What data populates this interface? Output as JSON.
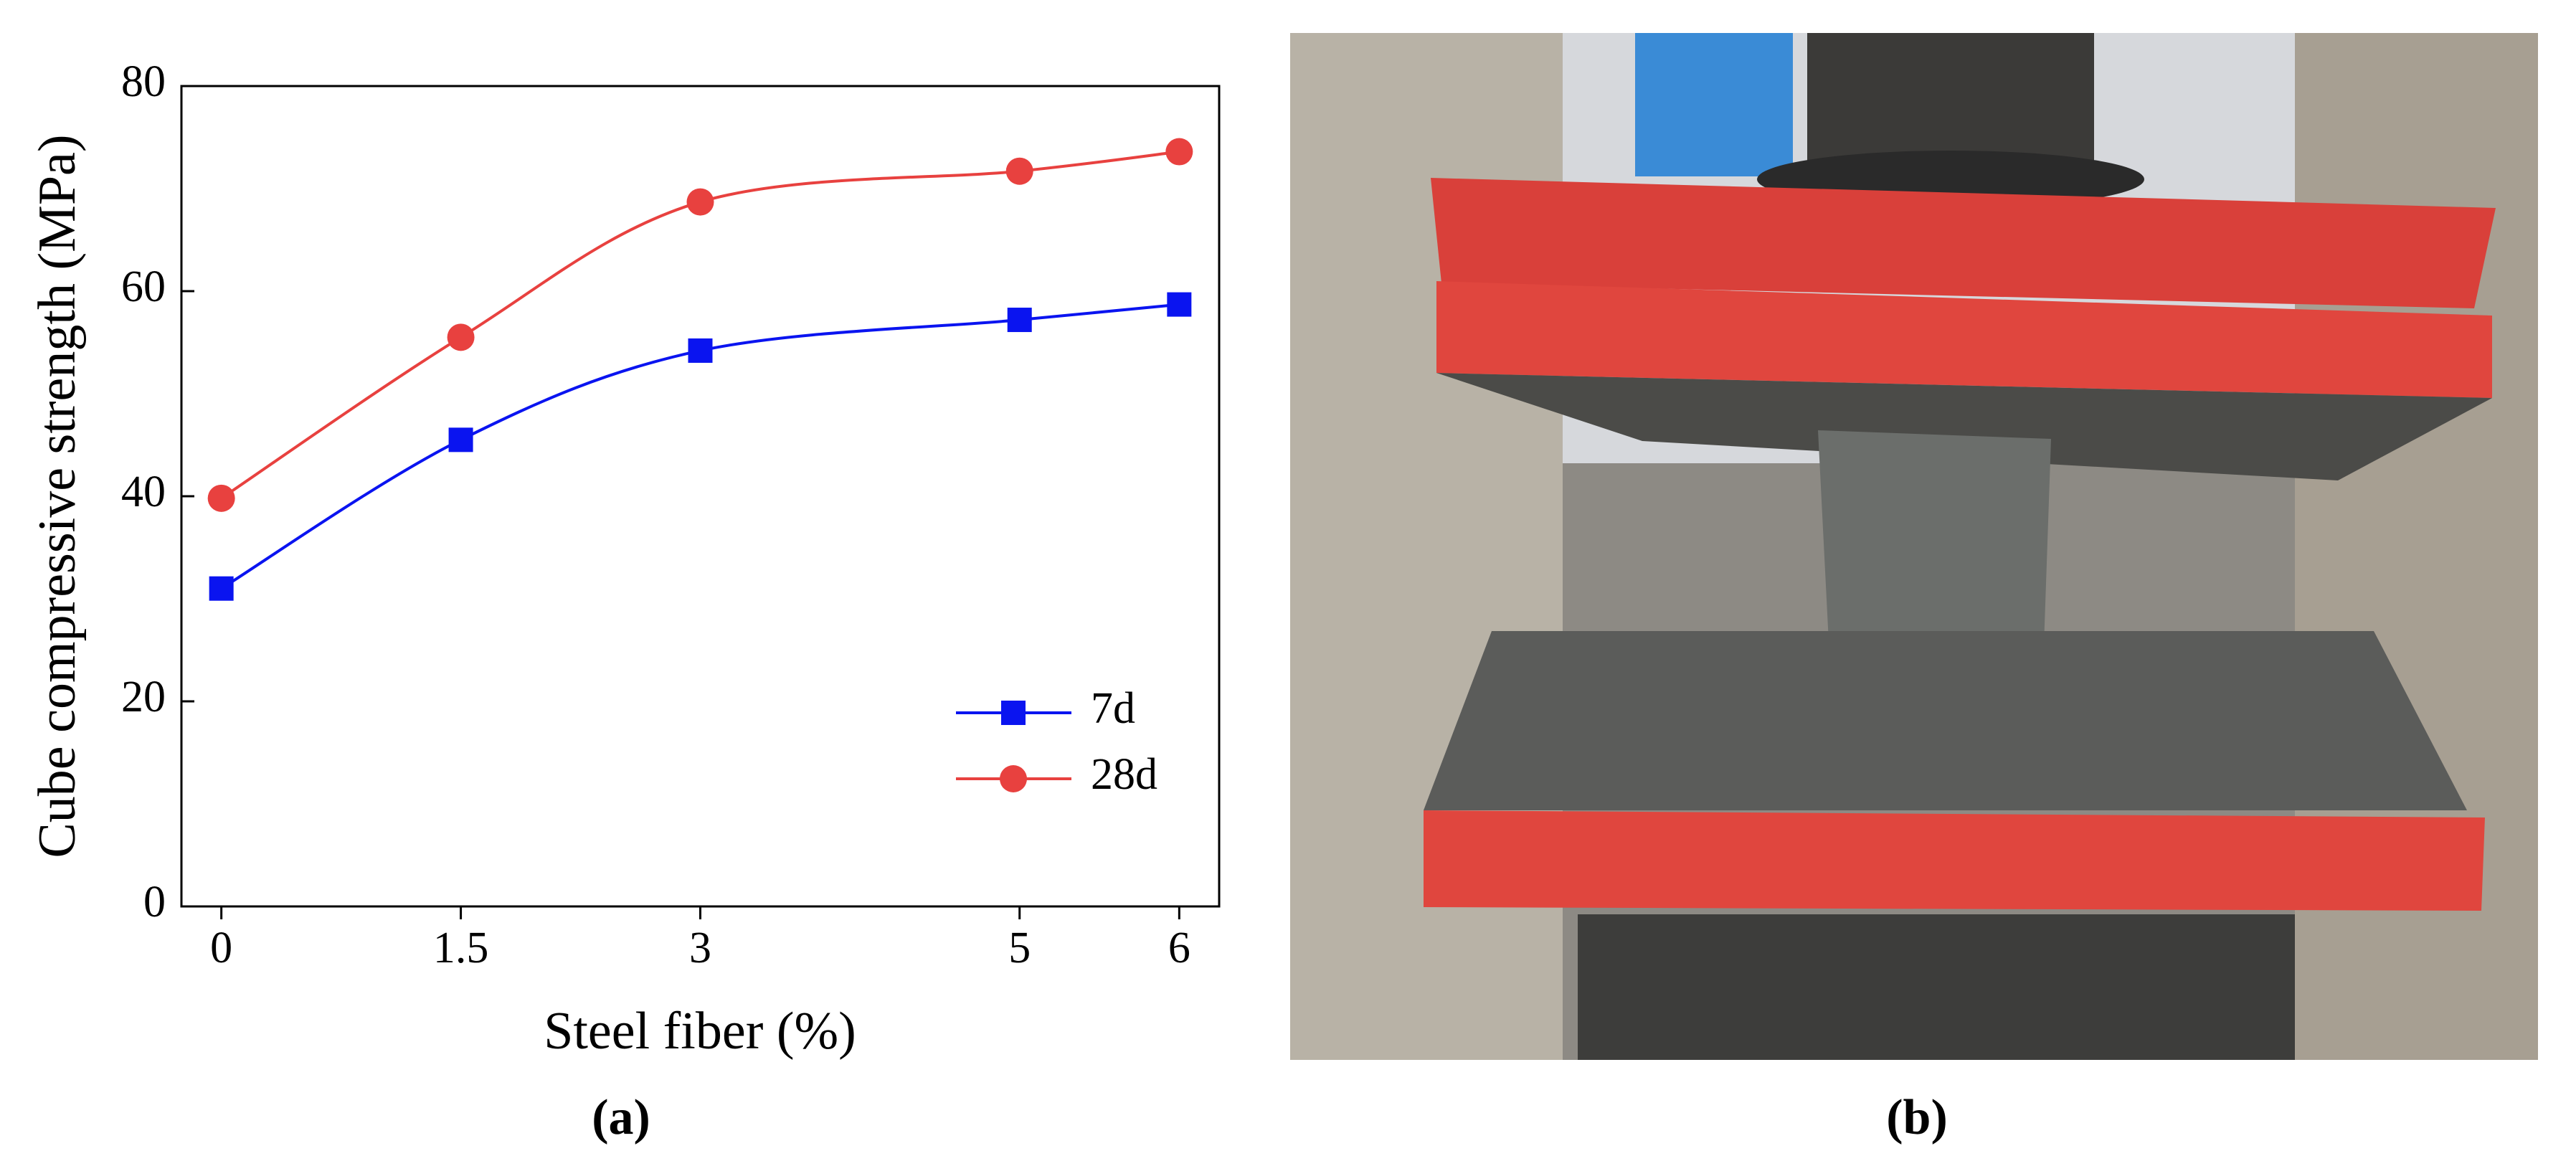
{
  "chart_data": {
    "type": "line",
    "x_label": "Steel fiber (%)",
    "y_label": "Cube compressive strength (MPa)",
    "x": [
      0,
      1.5,
      3,
      5,
      6
    ],
    "series": [
      {
        "name": "7d",
        "color": "#0a14f0",
        "marker": "square",
        "values": [
          31,
          45.5,
          54.2,
          57.2,
          58.7
        ]
      },
      {
        "name": "28d",
        "color": "#e8413f",
        "marker": "circle",
        "values": [
          39.8,
          55.5,
          68.7,
          71.7,
          73.6
        ]
      }
    ],
    "xlim": [
      -0.25,
      6.25
    ],
    "xticks": [
      0,
      1.5,
      3,
      5,
      6
    ],
    "ylim": [
      0,
      80
    ],
    "yticks": [
      0,
      20,
      40,
      60,
      80
    ],
    "smooth": true,
    "legend": "lower right"
  },
  "panels": {
    "a": "(a)",
    "b": "(b)"
  }
}
